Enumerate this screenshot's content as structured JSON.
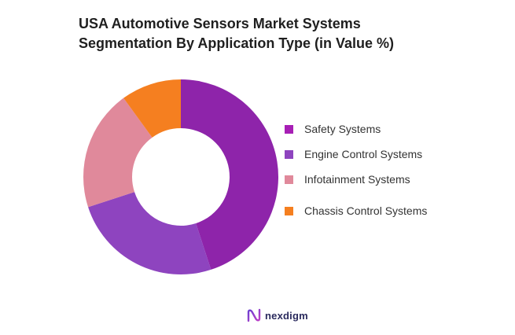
{
  "chart_data": {
    "type": "pie",
    "title": [
      "USA Automotive Sensors Market Systems",
      "Segmentation By Application Type (in Value %)"
    ],
    "categories": [
      "Safety Systems",
      "Engine Control Systems",
      "Infotainment Systems",
      "Chassis Control Systems"
    ],
    "values": [
      45,
      25,
      20,
      10
    ],
    "colors": [
      "#8e24aa",
      "#8e44bf",
      "#e0899b",
      "#f57f20"
    ],
    "legend_swatch_colors": [
      "#a71fb5",
      "#8e44bf",
      "#e0899b",
      "#f57f20"
    ],
    "donut": true,
    "legend_position": "right"
  },
  "brand": {
    "logo_icon": "nexdigm-n-icon",
    "name": "nexdigm"
  }
}
